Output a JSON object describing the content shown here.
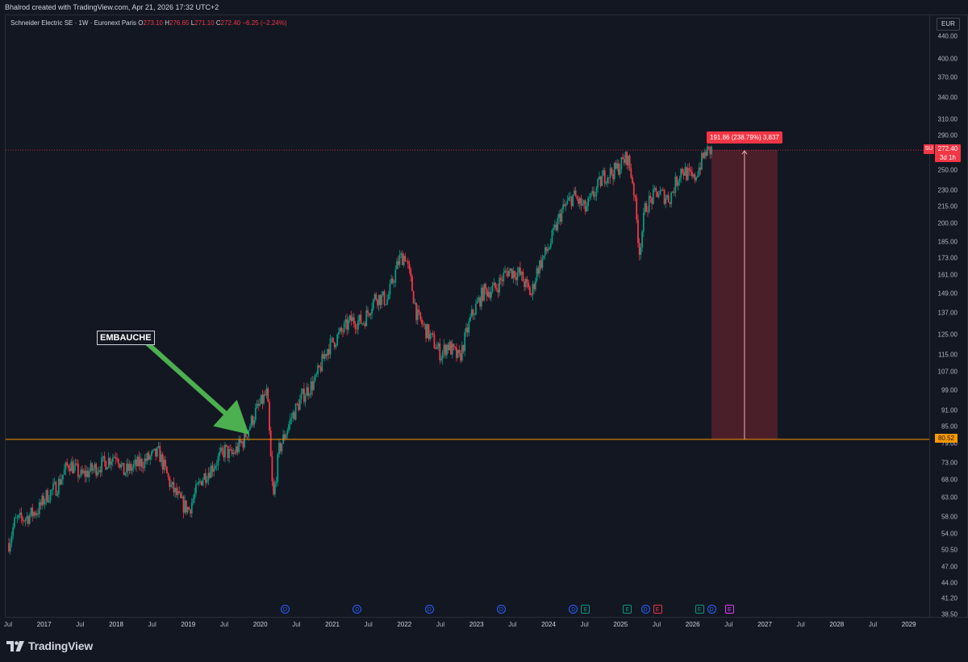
{
  "header": {
    "credit": "Bhalrod created with TradingView.com, Apr 21, 2026 17:32 UTC+2"
  },
  "legend": {
    "symbol_info": "Schneider Electric SE · 1W · Euronext Paris",
    "open_label": "O",
    "open": "273.10",
    "high_label": "H",
    "high": "276.65",
    "low_label": "L",
    "low": "271.10",
    "close_label": "C",
    "close": "272.40",
    "change": "−6.25 (−2.24%)"
  },
  "price_scale": {
    "currency": "EUR",
    "ticks": [
      "440.00",
      "400.00",
      "370.00",
      "340.00",
      "310.00",
      "290.00",
      "270.00",
      "250.00",
      "230.00",
      "215.00",
      "200.00",
      "185.00",
      "173.00",
      "161.00",
      "149.00",
      "137.00",
      "125.00",
      "115.00",
      "107.00",
      "99.00",
      "91.00",
      "85.00",
      "79.00",
      "73.00",
      "68.00",
      "63.00",
      "58.00",
      "54.00",
      "50.50",
      "47.00",
      "44.00",
      "41.20",
      "38.50"
    ],
    "current_symbol": "SU",
    "current_price": "272.40",
    "countdown": "3d 1h",
    "level_price": "80.52",
    "log_scale": true
  },
  "time_axis": {
    "ticks": [
      {
        "label": "Jul",
        "year": false
      },
      {
        "label": "2017",
        "year": true
      },
      {
        "label": "Jul",
        "year": false
      },
      {
        "label": "2018",
        "year": true
      },
      {
        "label": "Jul",
        "year": false
      },
      {
        "label": "2019",
        "year": true
      },
      {
        "label": "Jul",
        "year": false
      },
      {
        "label": "2020",
        "year": true
      },
      {
        "label": "Jul",
        "year": false
      },
      {
        "label": "2021",
        "year": true
      },
      {
        "label": "Jul",
        "year": false
      },
      {
        "label": "2022",
        "year": true
      },
      {
        "label": "Jul",
        "year": false
      },
      {
        "label": "2023",
        "year": true
      },
      {
        "label": "Jul",
        "year": false
      },
      {
        "label": "2024",
        "year": true
      },
      {
        "label": "Jul",
        "year": false
      },
      {
        "label": "2025",
        "year": true
      },
      {
        "label": "Jul",
        "year": false
      },
      {
        "label": "2026",
        "year": true
      },
      {
        "label": "Jul",
        "year": false
      },
      {
        "label": "2027",
        "year": true
      },
      {
        "label": "Jul",
        "year": false
      },
      {
        "label": "2028",
        "year": true
      },
      {
        "label": "Jul",
        "year": false
      },
      {
        "label": "2029",
        "year": true
      }
    ]
  },
  "annotations": {
    "text_box": "EMBAUCHE",
    "measure_label": "191.86 (238.79%) 3,837",
    "arrow_color": "#4caf50"
  },
  "events": [
    {
      "type": "D",
      "date": "2020-05"
    },
    {
      "type": "D",
      "date": "2021-05"
    },
    {
      "type": "D",
      "date": "2022-05"
    },
    {
      "type": "D",
      "date": "2023-05"
    },
    {
      "type": "D",
      "date": "2024-05"
    },
    {
      "type": "E",
      "date": "2024-07"
    },
    {
      "type": "E",
      "date": "2025-02"
    },
    {
      "type": "D",
      "date": "2025-05"
    },
    {
      "type": "ER",
      "date": "2025-07"
    },
    {
      "type": "E",
      "date": "2026-02"
    },
    {
      "type": "D",
      "date": "2026-04"
    },
    {
      "type": "EP",
      "date": "2026-07"
    }
  ],
  "footer": {
    "logo_text": "TradingView"
  },
  "colors": {
    "background": "#131722",
    "up": "#089981",
    "down": "#f23645",
    "level_line": "#ff9800",
    "grid": "#1e222d"
  },
  "chart_data": {
    "type": "candlestick",
    "title": "Schneider Electric SE · 1W · Euronext Paris",
    "y_scale": "log",
    "ylim": [
      38.5,
      440
    ],
    "xlim": [
      "2016-07",
      "2029-04"
    ],
    "horizontal_level": 80.52,
    "measure": {
      "from_date": "2026-04",
      "to_date": "2027-03",
      "from_price": 80.52,
      "to_price": 272.4,
      "change": 191.86,
      "change_pct": 238.79,
      "bars": 3837
    },
    "approx_weekly_path": [
      [
        "2016-07",
        52
      ],
      [
        "2016-08",
        57
      ],
      [
        "2016-10",
        58
      ],
      [
        "2016-12",
        60
      ],
      [
        "2017-01",
        63
      ],
      [
        "2017-03",
        66
      ],
      [
        "2017-05",
        73
      ],
      [
        "2017-07",
        69
      ],
      [
        "2017-09",
        71
      ],
      [
        "2017-11",
        73
      ],
      [
        "2018-01",
        76
      ],
      [
        "2018-02",
        70
      ],
      [
        "2018-04",
        72
      ],
      [
        "2018-06",
        74
      ],
      [
        "2018-08",
        76
      ],
      [
        "2018-10",
        66
      ],
      [
        "2018-12",
        61
      ],
      [
        "2019-01",
        60
      ],
      [
        "2019-03",
        68
      ],
      [
        "2019-05",
        72
      ],
      [
        "2019-07",
        77
      ],
      [
        "2019-08",
        75
      ],
      [
        "2019-10",
        80
      ],
      [
        "2019-12",
        90
      ],
      [
        "2020-02",
        98
      ],
      [
        "2020-03",
        62
      ],
      [
        "2020-04",
        77
      ],
      [
        "2020-06",
        88
      ],
      [
        "2020-08",
        97
      ],
      [
        "2020-10",
        103
      ],
      [
        "2020-12",
        118
      ],
      [
        "2021-02",
        125
      ],
      [
        "2021-04",
        133
      ],
      [
        "2021-06",
        132
      ],
      [
        "2021-08",
        147
      ],
      [
        "2021-10",
        145
      ],
      [
        "2021-12",
        172
      ],
      [
        "2022-01",
        175
      ],
      [
        "2022-02",
        155
      ],
      [
        "2022-03",
        135
      ],
      [
        "2022-05",
        125
      ],
      [
        "2022-07",
        115
      ],
      [
        "2022-08",
        120
      ],
      [
        "2022-10",
        113
      ],
      [
        "2022-12",
        135
      ],
      [
        "2023-02",
        150
      ],
      [
        "2023-04",
        152
      ],
      [
        "2023-06",
        164
      ],
      [
        "2023-08",
        162
      ],
      [
        "2023-10",
        148
      ],
      [
        "2023-11",
        165
      ],
      [
        "2024-01",
        182
      ],
      [
        "2024-03",
        210
      ],
      [
        "2024-05",
        225
      ],
      [
        "2024-07",
        212
      ],
      [
        "2024-08",
        222
      ],
      [
        "2024-10",
        244
      ],
      [
        "2024-12",
        250
      ],
      [
        "2025-02",
        265
      ],
      [
        "2025-03",
        235
      ],
      [
        "2025-04",
        178
      ],
      [
        "2025-05",
        215
      ],
      [
        "2025-07",
        228
      ],
      [
        "2025-09",
        222
      ],
      [
        "2025-11",
        252
      ],
      [
        "2026-01",
        240
      ],
      [
        "2026-03",
        270
      ],
      [
        "2026-04",
        272.4
      ]
    ]
  }
}
